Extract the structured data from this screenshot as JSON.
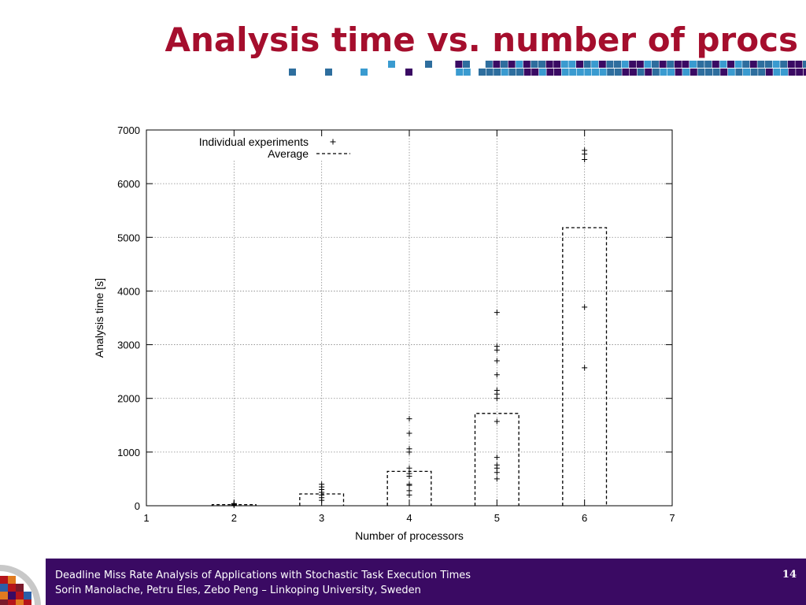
{
  "slide": {
    "title": "Analysis time vs. number of procs"
  },
  "footer": {
    "line1": "Deadline Miss Rate Analysis of Applications with Stochastic Task Execution Times",
    "line2": "Sorin Manolache, Petru Eles, Zebo Peng – Linkoping University, Sweden",
    "page_number": "14"
  },
  "colors": {
    "title": "#a50e2d",
    "footer_bg": "#3a0a63",
    "deco_purple": "#3a0a63",
    "deco_blue": "#2e6e9e",
    "deco_cyan": "#3a9bd0"
  },
  "chart_data": {
    "type": "scatter",
    "xlabel": "Number of processors",
    "ylabel": "Analysis time [s]",
    "xlim": [
      1,
      7
    ],
    "ylim": [
      0,
      7000
    ],
    "xticks": [
      1,
      2,
      3,
      4,
      5,
      6,
      7
    ],
    "yticks": [
      0,
      1000,
      2000,
      3000,
      4000,
      5000,
      6000,
      7000
    ],
    "grid": true,
    "legend_position": "top-left",
    "series": [
      {
        "name": "Individual experiments",
        "marker": "+",
        "points": [
          [
            2,
            10
          ],
          [
            2,
            20
          ],
          [
            2,
            30
          ],
          [
            2,
            40
          ],
          [
            3,
            100
          ],
          [
            3,
            150
          ],
          [
            3,
            200
          ],
          [
            3,
            250
          ],
          [
            3,
            300
          ],
          [
            3,
            350
          ],
          [
            3,
            400
          ],
          [
            4,
            200
          ],
          [
            4,
            280
          ],
          [
            4,
            380
          ],
          [
            4,
            400
          ],
          [
            4,
            550
          ],
          [
            4,
            600
          ],
          [
            4,
            700
          ],
          [
            4,
            1000
          ],
          [
            4,
            1060
          ],
          [
            4,
            1350
          ],
          [
            4,
            1620
          ],
          [
            5,
            500
          ],
          [
            5,
            620
          ],
          [
            5,
            700
          ],
          [
            5,
            760
          ],
          [
            5,
            900
          ],
          [
            5,
            1570
          ],
          [
            5,
            2000
          ],
          [
            5,
            2080
          ],
          [
            5,
            2150
          ],
          [
            5,
            2440
          ],
          [
            5,
            2700
          ],
          [
            5,
            2900
          ],
          [
            5,
            2970
          ],
          [
            5,
            3600
          ],
          [
            6,
            2570
          ],
          [
            6,
            3700
          ],
          [
            6,
            6450
          ],
          [
            6,
            6550
          ],
          [
            6,
            6620
          ]
        ]
      },
      {
        "name": "Average",
        "style": "dashed-box",
        "box_halfwidth": 0.25,
        "values": [
          {
            "x": 2,
            "y": 20
          },
          {
            "x": 3,
            "y": 220
          },
          {
            "x": 4,
            "y": 640
          },
          {
            "x": 5,
            "y": 1720
          },
          {
            "x": 6,
            "y": 5180
          }
        ]
      }
    ]
  }
}
